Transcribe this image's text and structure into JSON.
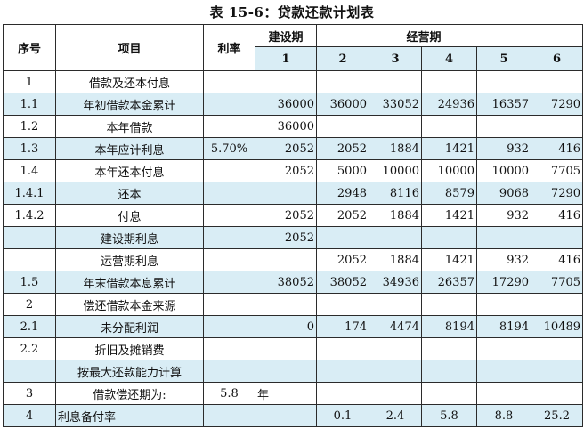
{
  "title": "表 15-6：贷款还款计划表",
  "header": {
    "seq": "序号",
    "item": "项目",
    "rate": "利率",
    "construction": "建设期",
    "operation": "经营期",
    "years": [
      "1",
      "2",
      "3",
      "4",
      "5",
      "6"
    ]
  },
  "rows": [
    {
      "seq": "1",
      "item": "借款及还本付息",
      "rate": "",
      "vals": [
        "",
        "",
        "",
        "",
        "",
        ""
      ],
      "shade": false
    },
    {
      "seq": "1.1",
      "item": "年初借款本金累计",
      "rate": "",
      "vals": [
        "36000",
        "36000",
        "33052",
        "24936",
        "16357",
        "7290"
      ],
      "shade": true
    },
    {
      "seq": "1.2",
      "item": "本年借款",
      "rate": "",
      "vals": [
        "36000",
        "",
        "",
        "",
        "",
        ""
      ],
      "shade": false
    },
    {
      "seq": "1.3",
      "item": "本年应计利息",
      "rate": "5.70%",
      "vals": [
        "2052",
        "2052",
        "1884",
        "1421",
        "932",
        "416"
      ],
      "shade": true
    },
    {
      "seq": "1.4",
      "item": "本年还本付息",
      "rate": "",
      "vals": [
        "2052",
        "5000",
        "10000",
        "10000",
        "10000",
        "7705"
      ],
      "shade": false
    },
    {
      "seq": "1.4.1",
      "item": "还本",
      "rate": "",
      "vals": [
        "",
        "2948",
        "8116",
        "8579",
        "9068",
        "7290"
      ],
      "shade": true
    },
    {
      "seq": "1.4.2",
      "item": "付息",
      "rate": "",
      "vals": [
        "2052",
        "2052",
        "1884",
        "1421",
        "932",
        "416"
      ],
      "shade": false
    },
    {
      "seq": "",
      "item": "建设期利息",
      "rate": "",
      "vals": [
        "2052",
        "",
        "",
        "",
        "",
        ""
      ],
      "shade": true
    },
    {
      "seq": "",
      "item": "运营期利息",
      "rate": "",
      "vals": [
        "",
        "2052",
        "1884",
        "1421",
        "932",
        "416"
      ],
      "shade": false
    },
    {
      "seq": "1.5",
      "item": "年末借款本息累计",
      "rate": "",
      "vals": [
        "38052",
        "38052",
        "34936",
        "26357",
        "17290",
        "7705"
      ],
      "shade": true
    },
    {
      "seq": "2",
      "item": "偿还借款本金来源",
      "rate": "",
      "vals": [
        "",
        "",
        "",
        "",
        "",
        ""
      ],
      "shade": false
    },
    {
      "seq": "2.1",
      "item": "未分配利润",
      "rate": "",
      "vals": [
        "0",
        "174",
        "4474",
        "8194",
        "8194",
        "10489"
      ],
      "shade": true
    },
    {
      "seq": "2.2",
      "item": "折旧及摊销费",
      "rate": "",
      "vals": [
        "",
        "",
        "",
        "",
        "",
        ""
      ],
      "shade": false
    },
    {
      "seq": "",
      "item": "按最大还款能力计算",
      "rate": "",
      "vals": [
        "",
        "",
        "",
        "",
        "",
        ""
      ],
      "shade": true
    },
    {
      "seq": "3",
      "item": "借款偿还期为:",
      "rate": "5.8",
      "vals": [
        "年",
        "",
        "",
        "",
        "",
        ""
      ],
      "shade": false
    },
    {
      "seq": "4",
      "item": "利息备付率",
      "rate": "",
      "vals": [
        "",
        "0.1",
        "2.4",
        "5.8",
        "8.8",
        "25.2"
      ],
      "shade": true
    }
  ]
}
